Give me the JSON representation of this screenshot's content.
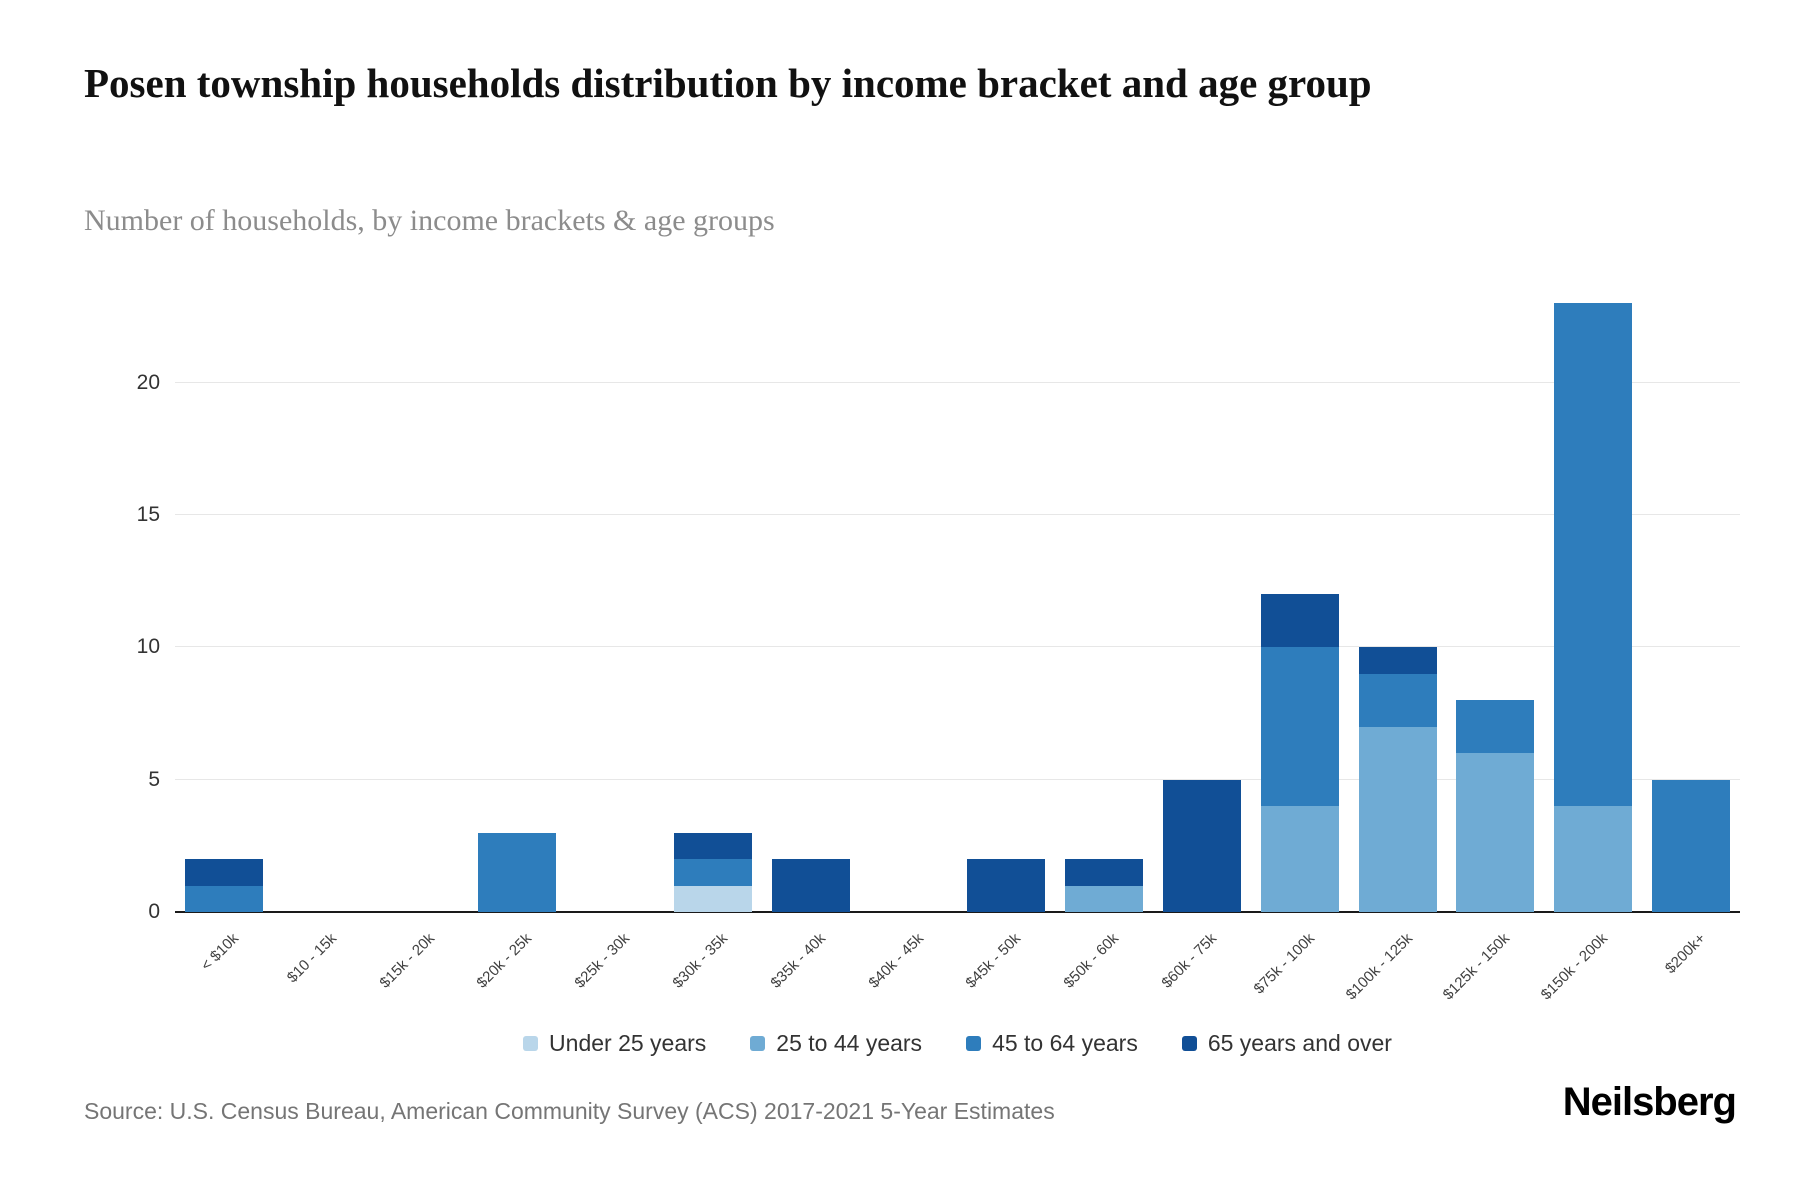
{
  "page": {
    "title": "Posen township households distribution by income bracket and age group",
    "subtitle": "Number of households, by income brackets & age groups",
    "source": "Source: U.S. Census Bureau, American Community Survey (ACS) 2017-2021 5-Year Estimates",
    "brand": "Neilsberg"
  },
  "chart_data": {
    "type": "bar",
    "stacked": true,
    "title": "Posen township households distribution by income bracket and age group",
    "subtitle": "Number of households, by income brackets & age groups",
    "xlabel": "",
    "ylabel": "Number of households",
    "grid": true,
    "legend_position": "bottom",
    "yticks": [
      0,
      5,
      10,
      15,
      20
    ],
    "ylim": [
      0,
      23.5
    ],
    "categories": [
      "< $10k",
      "$10 - 15k",
      "$15k - 20k",
      "$20k - 25k",
      "$25k - 30k",
      "$30k - 35k",
      "$35k - 40k",
      "$40k - 45k",
      "$45k - 50k",
      "$50k - 60k",
      "$60k - 75k",
      "$75k - 100k",
      "$100k - 125k",
      "$125k - 150k",
      "$150k - 200k",
      "$200k+"
    ],
    "series": [
      {
        "name": "Under 25 years",
        "color": "#b9d6ea",
        "values": [
          0,
          0,
          0,
          0,
          0,
          1,
          0,
          0,
          0,
          0,
          0,
          0,
          0,
          0,
          0,
          0
        ]
      },
      {
        "name": "25 to 44 years",
        "color": "#6fabd4",
        "values": [
          0,
          0,
          0,
          0,
          0,
          0,
          0,
          0,
          0,
          1,
          0,
          4,
          7,
          6,
          4,
          0
        ]
      },
      {
        "name": "45 to 64 years",
        "color": "#2e7dbc",
        "values": [
          1,
          0,
          0,
          3,
          0,
          1,
          0,
          0,
          0,
          0,
          0,
          6,
          2,
          2,
          19,
          5
        ]
      },
      {
        "name": "65 years and over",
        "color": "#114f96",
        "values": [
          1,
          0,
          0,
          0,
          0,
          1,
          2,
          0,
          2,
          1,
          5,
          2,
          1,
          0,
          0,
          0
        ]
      }
    ],
    "totals": [
      2,
      0,
      0,
      3,
      0,
      3,
      2,
      0,
      2,
      2,
      5,
      12,
      10,
      8,
      23,
      5
    ]
  }
}
